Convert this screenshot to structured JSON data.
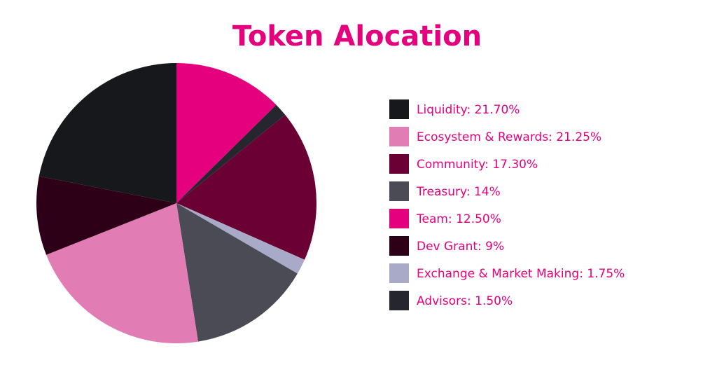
{
  "chart_data": {
    "type": "pie",
    "title": "Token Alocation",
    "categories": [
      "Liquidity: 21.70%",
      "Ecosystem & Rewards: 21.25%",
      "Community: 17.30%",
      "Treasury: 14%",
      "Team: 12.50%",
      "Dev Grant: 9%",
      "Exchange & Market Making: 1.75%",
      "Advisors: 1.50%"
    ],
    "values": [
      21.7,
      21.25,
      17.3,
      14,
      12.5,
      9,
      1.75,
      1.5
    ],
    "colors": [
      "#17181c",
      "#e17db4",
      "#6b0035",
      "#4a4b55",
      "#e5007e",
      "#2d0017",
      "#a9aac8",
      "#25262e"
    ],
    "legend": "right"
  }
}
